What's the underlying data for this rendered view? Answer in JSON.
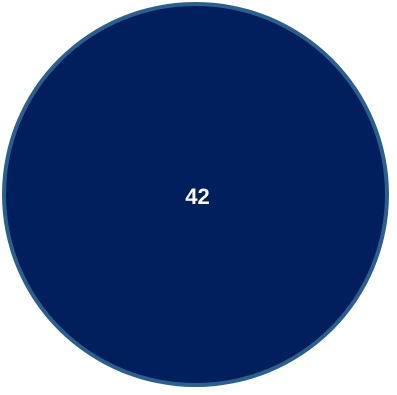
{
  "circle": {
    "label": "42",
    "fill_color": "#001f5c",
    "border_color": "#2d5f8c",
    "text_color": "#ffffff"
  }
}
